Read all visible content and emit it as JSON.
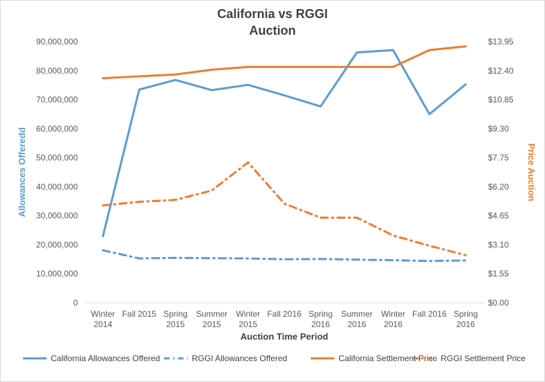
{
  "chart_data": {
    "type": "line",
    "title_line1": "California vs RGGI",
    "title_line2": "Auction",
    "xlabel": "Auction Time Period",
    "ylabel_left": "Allowances Offeredd",
    "ylabel_right": "Price Auction",
    "categories": [
      [
        "Winter",
        "2014"
      ],
      [
        "Fall 2015"
      ],
      [
        "Spring",
        "2015"
      ],
      [
        "Summer",
        "2015"
      ],
      [
        "Winter",
        "2015"
      ],
      [
        "Fall 2016"
      ],
      [
        "Spring",
        "2016"
      ],
      [
        "Summer",
        "2016"
      ],
      [
        "Winter",
        "2016"
      ],
      [
        "Fall 2016"
      ],
      [
        "Spring",
        "2016"
      ]
    ],
    "y_left": {
      "min": 0,
      "max": 90000000,
      "step": 10000000,
      "tick_labels": [
        "0",
        "10,000,000",
        "20,000,000",
        "30,000,000",
        "40,000,000",
        "50,000,000",
        "60,000,000",
        "70,000,000",
        "80,000,000",
        "90,000,000"
      ]
    },
    "y_right": {
      "min": 0,
      "max": 13.95,
      "step": 1.55,
      "tick_labels": [
        "$0.00",
        "$1.55",
        "$3.10",
        "$4.65",
        "$6.20",
        "$7.75",
        "$9.30",
        "$10.85",
        "$12.40",
        "$13.95"
      ]
    },
    "grid": false,
    "legend_position": "bottom",
    "series": [
      {
        "name": "California Allowances Offered",
        "axis": "left",
        "color": "#5B9BD5",
        "dash": "solid",
        "values": [
          23000000,
          73500000,
          76800000,
          73300000,
          75100000,
          71500000,
          67700000,
          86300000,
          87100000,
          65000000,
          75300000
        ]
      },
      {
        "name": "RGGI Allowances Offered",
        "axis": "left",
        "color": "#5B9BD5",
        "dash": "dashdot",
        "values": [
          18100000,
          15300000,
          15500000,
          15400000,
          15300000,
          15000000,
          15100000,
          14900000,
          14700000,
          14400000,
          14600000
        ]
      },
      {
        "name": "California Settlement Price",
        "axis": "right",
        "color": "#ED7D31",
        "dash": "solid",
        "values": [
          12.0,
          12.1,
          12.2,
          12.45,
          12.6,
          12.6,
          12.6,
          12.6,
          12.6,
          13.5,
          13.7
        ]
      },
      {
        "name": "RGGI Settlement Price",
        "axis": "right",
        "color": "#ED7D31",
        "dash": "dashdot",
        "values": [
          5.2,
          5.4,
          5.5,
          6.0,
          7.5,
          5.3,
          4.55,
          4.55,
          3.6,
          3.05,
          2.55
        ]
      }
    ]
  }
}
